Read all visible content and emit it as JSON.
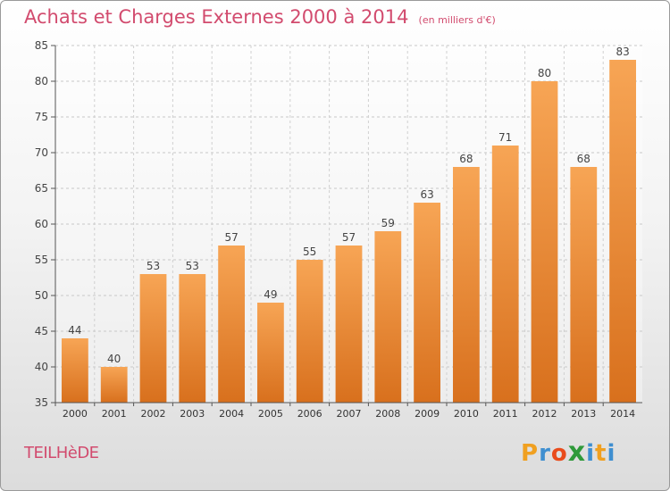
{
  "chart_data": {
    "type": "bar",
    "title": "Achats et Charges Externes 2000 à 2014",
    "subtitle": "(en milliers d'€)",
    "categories": [
      "2000",
      "2001",
      "2002",
      "2003",
      "2004",
      "2005",
      "2006",
      "2007",
      "2008",
      "2009",
      "2010",
      "2011",
      "2012",
      "2013",
      "2014"
    ],
    "values": [
      44,
      40,
      53,
      53,
      57,
      49,
      55,
      57,
      59,
      63,
      68,
      71,
      80,
      68,
      83
    ],
    "ylim": [
      35,
      85
    ],
    "yticks": [
      35,
      40,
      45,
      50,
      55,
      60,
      65,
      70,
      75,
      80,
      85
    ],
    "grid": true,
    "bar_color_top": "#f7a555",
    "bar_color_bottom": "#d8701d"
  },
  "footer": {
    "commune": "TEILHèDE",
    "logo_letters": [
      "P",
      "r",
      "o",
      "x",
      "i",
      "t",
      "i"
    ],
    "logo_colors": [
      "#f0a020",
      "#3f8fd0",
      "#e94c1c",
      "#2f9a3a",
      "#3f8fd0",
      "#f0a020",
      "#3f8fd0"
    ]
  }
}
